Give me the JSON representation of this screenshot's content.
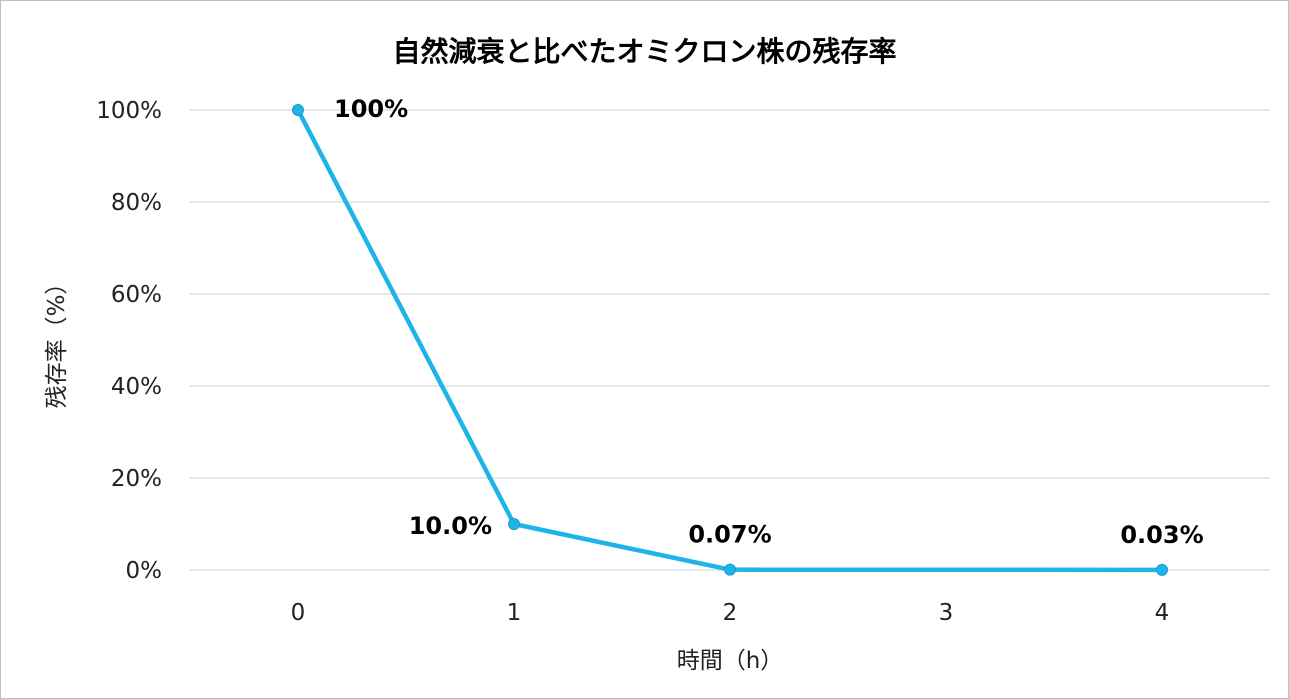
{
  "chart_data": {
    "type": "line",
    "title": "自然減衰と比べたオミクロン株の残存率",
    "xlabel": "時間（h）",
    "ylabel": "残存率（%）",
    "categories": [
      "0",
      "1",
      "2",
      "3",
      "4"
    ],
    "x": [
      0,
      1,
      2,
      4
    ],
    "y": [
      100,
      10.0,
      0.07,
      0.03
    ],
    "data_labels": [
      "100%",
      "10.0%",
      "0.07%",
      "0.03%"
    ],
    "ylim": [
      0,
      100
    ],
    "y_ticks": [
      "0%",
      "20%",
      "40%",
      "60%",
      "80%",
      "100%"
    ],
    "grid": true,
    "legend": "none",
    "line_color": "#1fb4e8"
  }
}
